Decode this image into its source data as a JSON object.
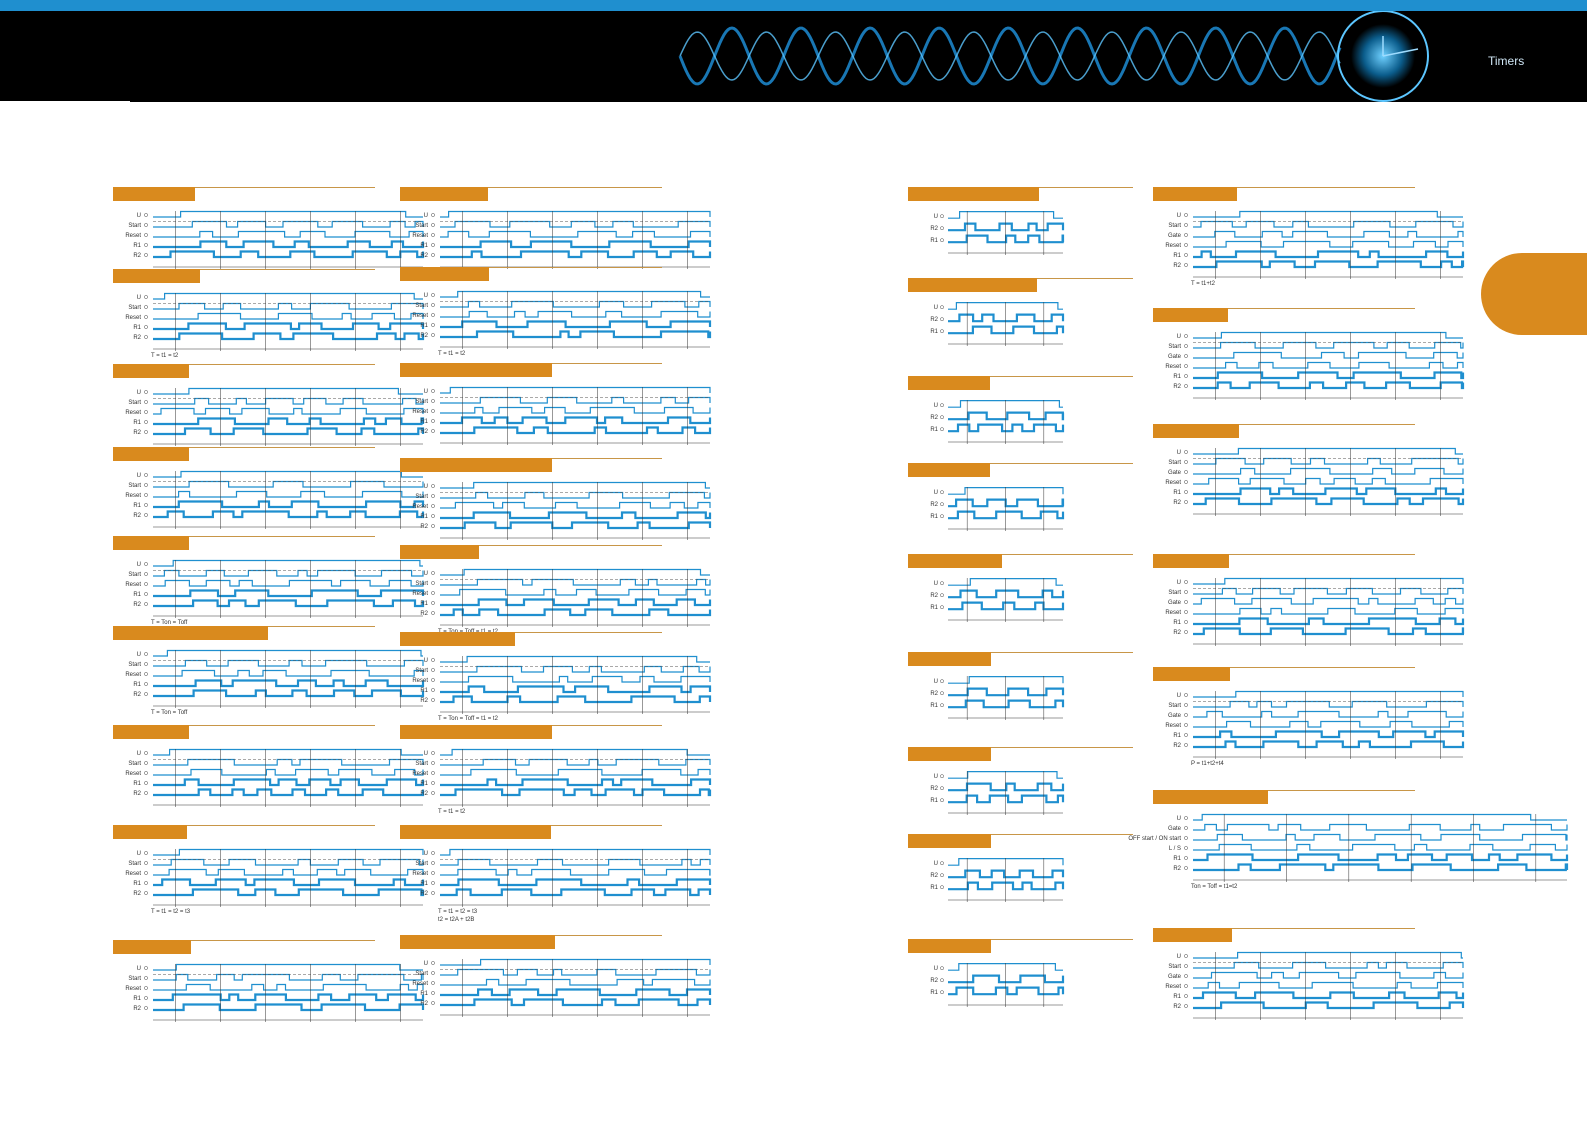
{
  "header": {
    "title": "Timers"
  },
  "labels": {
    "u": "U",
    "start": "Start",
    "reset": "Reset",
    "gate": "Gate",
    "r1": "R1",
    "r2": "R2",
    "offstart": "OFF start / ON start",
    "ll": "L / S"
  },
  "notes": {
    "t_t1_t2": "T = t1 = t2",
    "t_t1_t2_b": "T = t1 = t2",
    "ton_toff": "T = Ton = Toff",
    "ton_toff_t1t2": "T = Ton = Toff = t1 = t2",
    "ton_toff_b": "T = Ton = Toff",
    "ton_toff_t1t2_b": "T = Ton = Toff = t1 = t2",
    "t_t1t2_c": "T = t1 = t2",
    "t_t1t2t3": "T = t1 = t2 = t3",
    "t_t1t2t3_b": "T = t1 = t2 = t3",
    "t2_split": "t2 = t2A + t2B",
    "r_t12": "T = t1+t2",
    "r_p": "P = t1+t2+t4",
    "r_ton": "Ton = Toff = t1=t2"
  },
  "colors": {
    "accent": "#d98a1e",
    "signal": "#1f8fcf",
    "banner": "#000000"
  }
}
